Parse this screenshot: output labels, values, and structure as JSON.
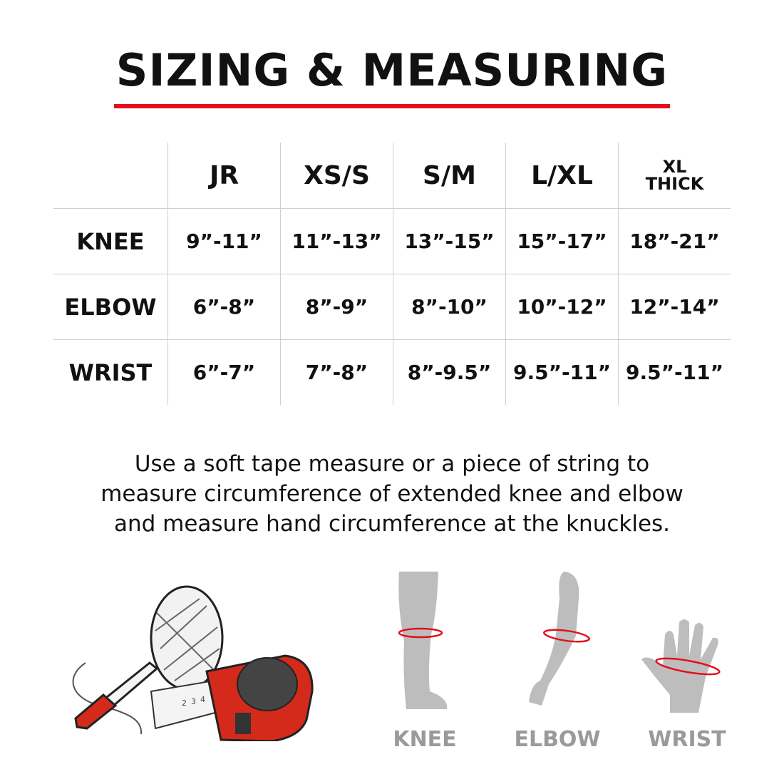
{
  "header": {
    "title": "SIZING & MEASURING",
    "accent_color": "#e3101b"
  },
  "size_table": {
    "columns": [
      "JR",
      "XS/S",
      "S/M",
      "L/XL",
      "XL THICK"
    ],
    "column_xl_lines": [
      "XL",
      "THICK"
    ],
    "rows": [
      {
        "label": "KNEE",
        "values": [
          "9”-11”",
          "11”-13”",
          "13”-15”",
          "15”-17”",
          "18”-21”"
        ]
      },
      {
        "label": "ELBOW",
        "values": [
          "6”-8”",
          "8”-9”",
          "8”-10”",
          "10”-12”",
          "12”-14”"
        ]
      },
      {
        "label": "WRIST",
        "values": [
          "6”-7”",
          "7”-8”",
          "8”-9.5”",
          "9.5”-11”",
          "9.5”-11”"
        ]
      }
    ]
  },
  "instructions": {
    "lines": [
      "Use a soft tape measure or a piece of string to",
      "measure circumference of extended knee and elbow",
      "and measure hand circumference at the knuckles."
    ]
  },
  "illustrations": {
    "tools_icon": "string-ball-marker-tape-measure",
    "tape_digits": [
      "2",
      "3",
      "4"
    ],
    "body_parts": [
      {
        "label": "KNEE",
        "icon": "leg-icon"
      },
      {
        "label": "ELBOW",
        "icon": "arm-icon"
      },
      {
        "label": "WRIST",
        "icon": "hand-icon"
      }
    ],
    "figure_color": "#bdbdbd",
    "label_color": "#9a9a9a"
  }
}
